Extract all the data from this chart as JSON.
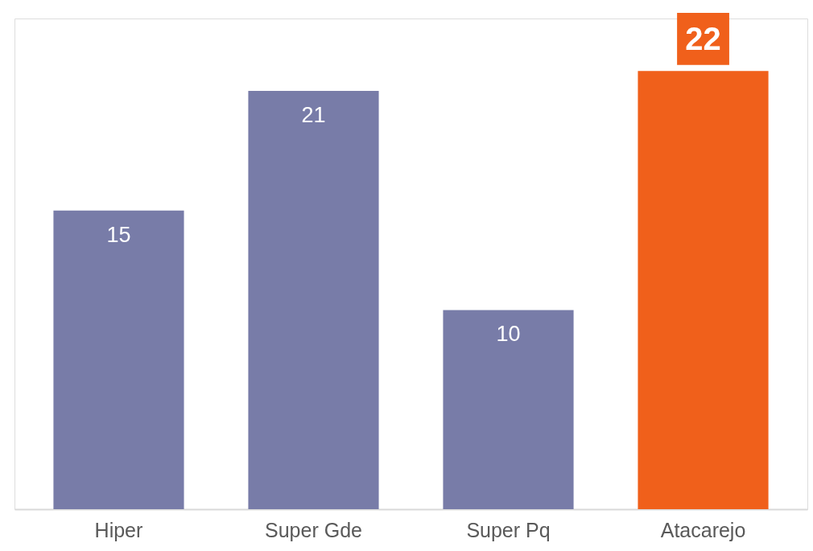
{
  "chart_data": {
    "type": "bar",
    "categories": [
      "Hiper",
      "Super Gde",
      "Super Pq",
      "Atacarejo"
    ],
    "values": [
      15,
      21,
      10,
      22
    ],
    "colors": [
      "#787ca8",
      "#787ca8",
      "#787ca8",
      "#f0601b"
    ],
    "data_labels": true,
    "grid": false,
    "tick_labels": "x"
  }
}
